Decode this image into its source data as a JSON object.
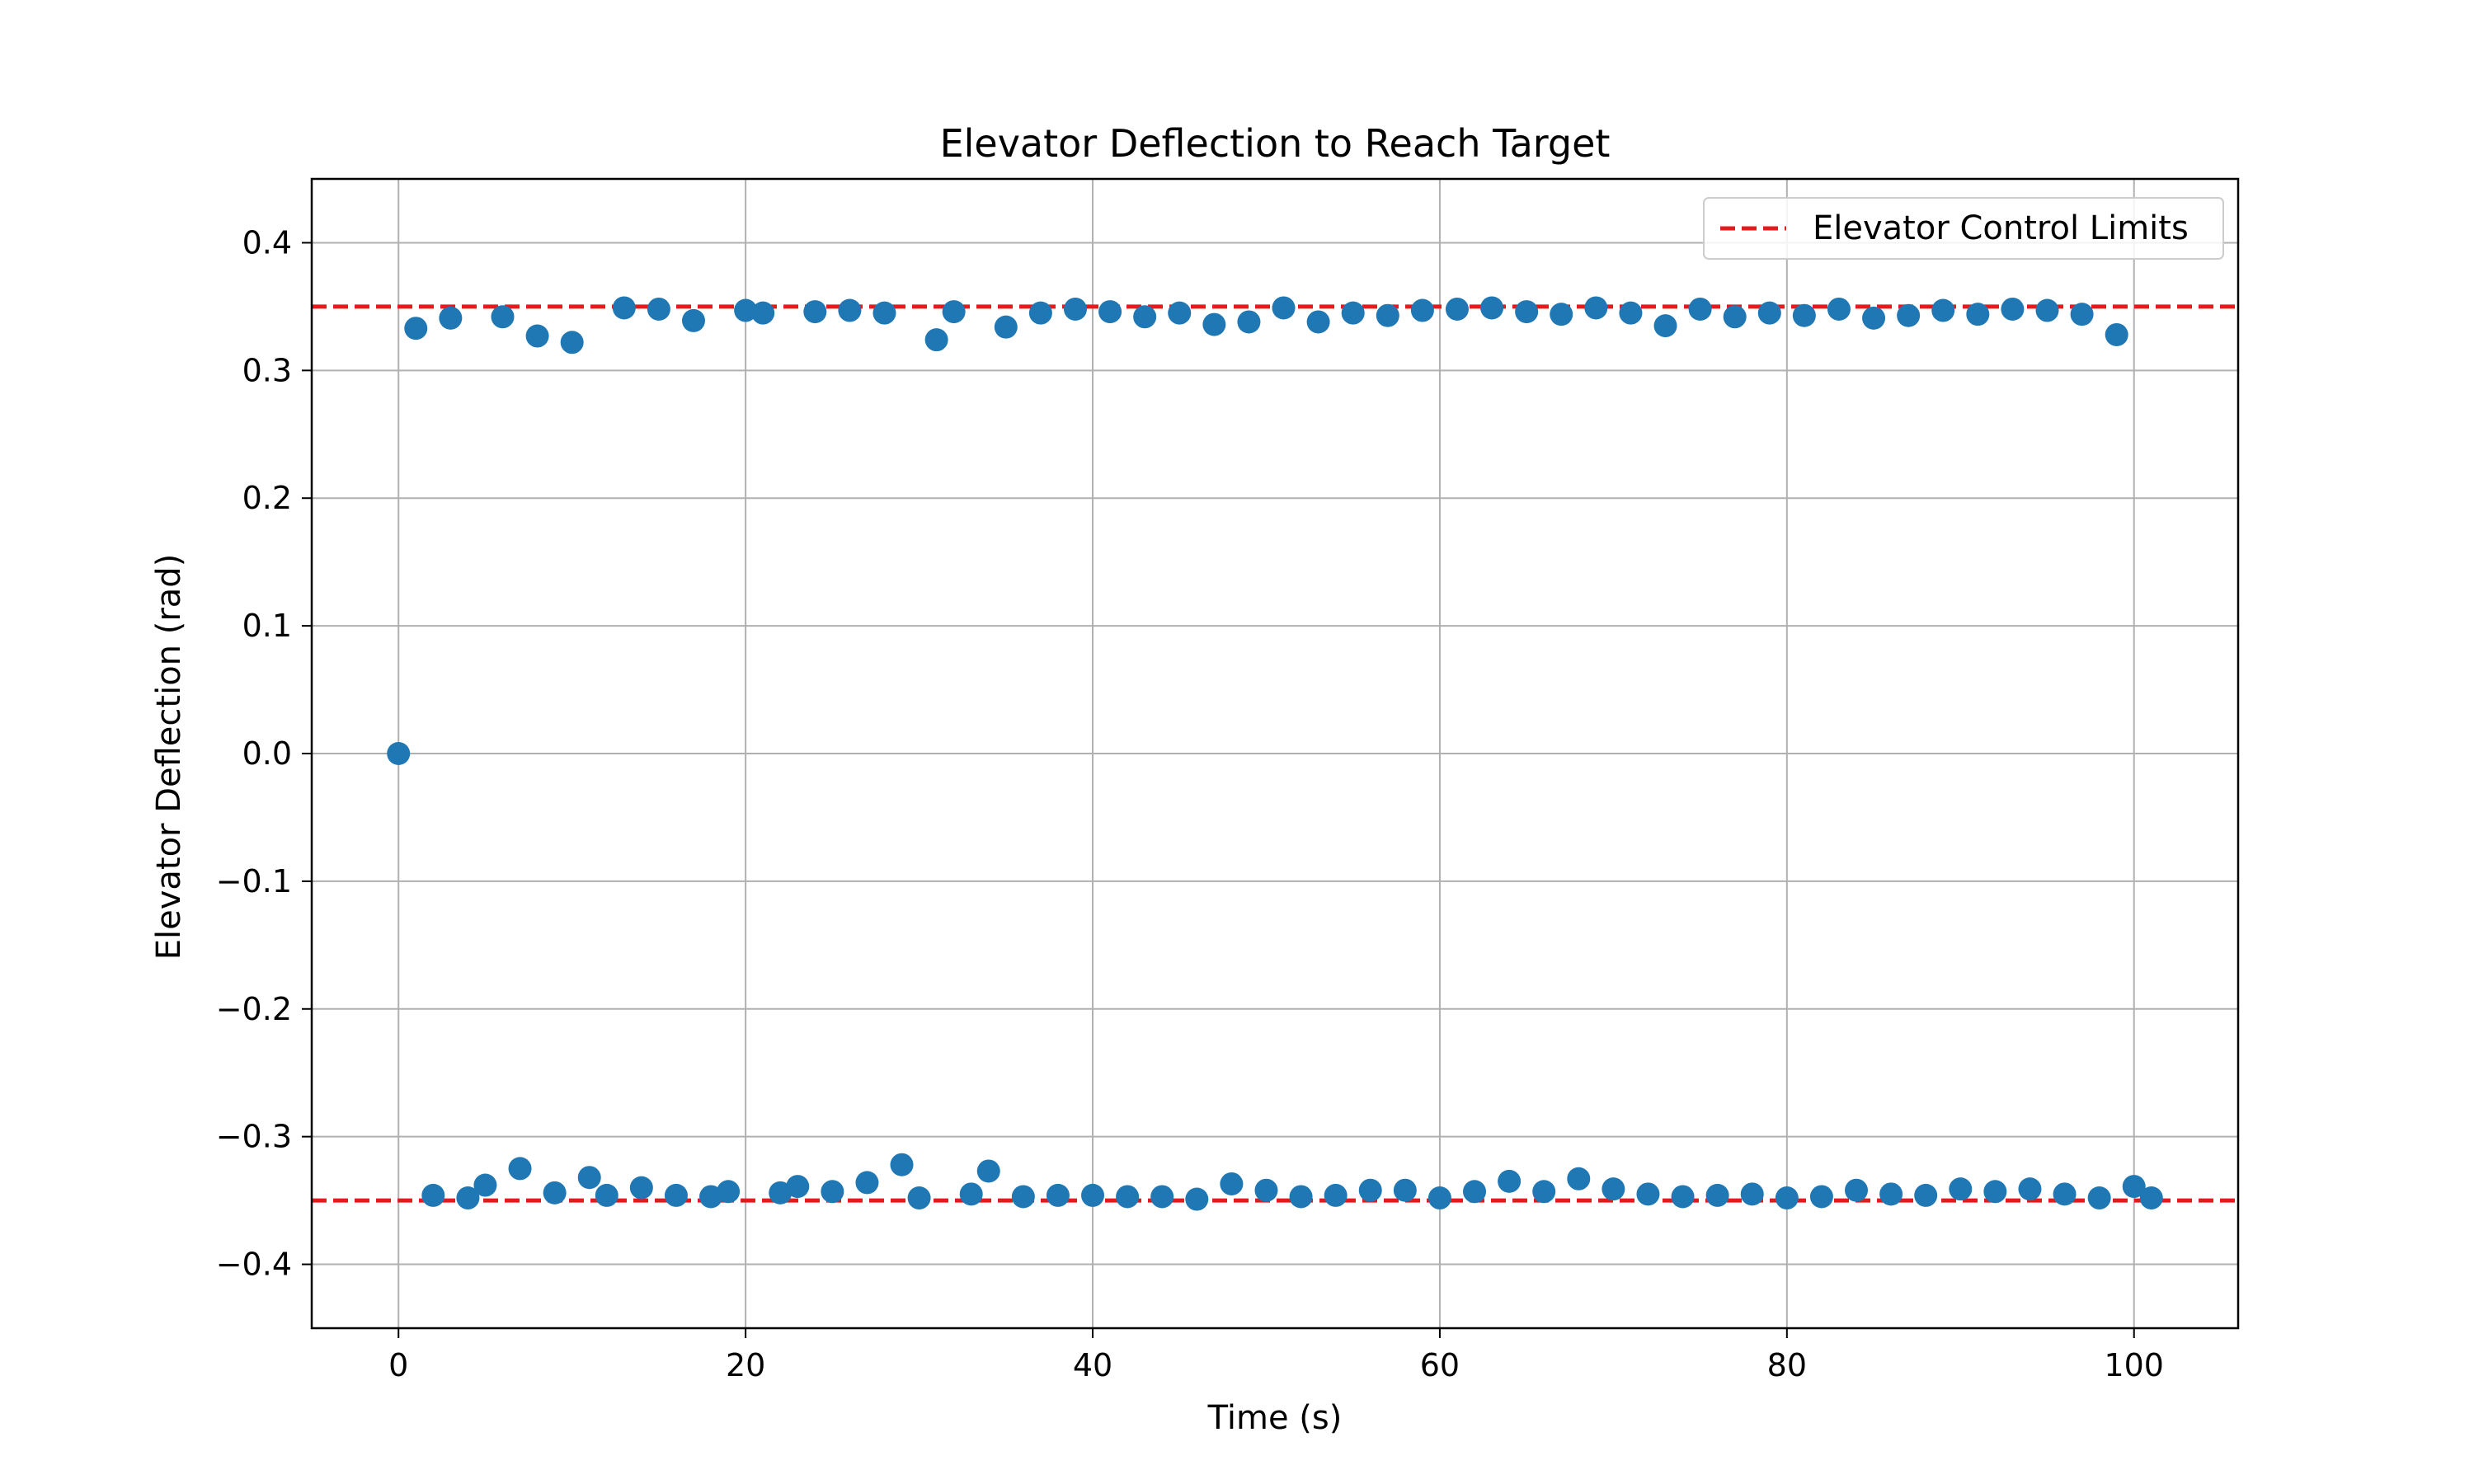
{
  "chart_data": {
    "type": "scatter",
    "title": "Elevator Deflection to Reach Target",
    "xlabel": "Time (s)",
    "ylabel": "Elevator Deflection (rad)",
    "xlim": [
      -5,
      106
    ],
    "ylim": [
      -0.45,
      0.45
    ],
    "xticks": [
      0,
      20,
      40,
      60,
      80,
      100
    ],
    "yticks": [
      0.4,
      0.3,
      0.2,
      0.1,
      0.0,
      -0.1,
      -0.2,
      -0.3,
      -0.4
    ],
    "ytick_labels": [
      "0.4",
      "0.3",
      "0.2",
      "0.1",
      "0.0",
      "−0.1",
      "−0.2",
      "−0.3",
      "−0.4"
    ],
    "grid": true,
    "legend_position": "top-right",
    "point_color": "#1f77b4",
    "limit_color": "#e41a1c",
    "series": [
      {
        "x": [
          0,
          1,
          2,
          3,
          4,
          5,
          6,
          7,
          8,
          9,
          10,
          11,
          12,
          13,
          14,
          15,
          16,
          17,
          18,
          19,
          20,
          21,
          22,
          23,
          24,
          25,
          26,
          27,
          28,
          29,
          30,
          31,
          32,
          33,
          34,
          35,
          36,
          37,
          38,
          39,
          40,
          41,
          42,
          43,
          44,
          45,
          46,
          47,
          48,
          49,
          50,
          51,
          52,
          53,
          54,
          55,
          56,
          57,
          58,
          59,
          60,
          61,
          62,
          63,
          64,
          65,
          66,
          67,
          68,
          69,
          70,
          71,
          72,
          73,
          74,
          75,
          76,
          77,
          78,
          79,
          80,
          81,
          82,
          83,
          84,
          85,
          86,
          87,
          88,
          89,
          90,
          91,
          92,
          93,
          94,
          95,
          96,
          97,
          98,
          99,
          100,
          101
        ],
        "y": [
          0.0,
          0.333,
          -0.346,
          0.341,
          -0.348,
          -0.338,
          0.342,
          -0.325,
          0.327,
          -0.344,
          0.322,
          -0.332,
          -0.346,
          0.349,
          -0.34,
          0.348,
          -0.346,
          0.339,
          -0.347,
          -0.343,
          0.347,
          0.345,
          -0.344,
          -0.339,
          0.346,
          -0.343,
          0.347,
          -0.336,
          0.345,
          -0.322,
          -0.348,
          0.324,
          0.346,
          -0.345,
          -0.327,
          0.334,
          -0.347,
          0.345,
          -0.346,
          0.348,
          -0.346,
          0.346,
          -0.347,
          0.342,
          -0.347,
          0.345,
          -0.349,
          0.336,
          -0.337,
          0.338,
          -0.342,
          0.349,
          -0.347,
          0.338,
          -0.346,
          0.345,
          -0.342,
          0.343,
          -0.342,
          0.347,
          -0.348,
          0.348,
          -0.343,
          0.349,
          -0.335,
          0.346,
          -0.343,
          0.344,
          -0.333,
          0.349,
          -0.341,
          0.345,
          -0.345,
          0.335,
          -0.347,
          0.348,
          -0.346,
          0.342,
          -0.345,
          0.345,
          -0.348,
          0.343,
          -0.347,
          0.348,
          -0.342,
          0.341,
          -0.345,
          0.343,
          -0.346,
          0.347,
          -0.341,
          0.344,
          -0.343,
          0.348,
          -0.341,
          0.347,
          -0.345,
          0.344,
          -0.348,
          0.328,
          -0.339,
          -0.348
        ]
      }
    ],
    "limits": {
      "name": "Elevator Control Limits",
      "values": [
        0.35,
        -0.35
      ]
    }
  }
}
